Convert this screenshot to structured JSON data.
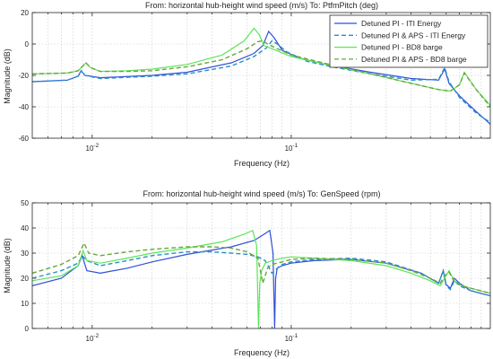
{
  "chart_data": [
    {
      "type": "line",
      "title": "From: horizontal hub-height wind speed (m/s)  To: PtfmPitch (deg)",
      "xlabel": "Frequency  (Hz)",
      "ylabel": "Magnitude (dB)",
      "xscale": "log",
      "xlim": [
        0.005,
        1.0
      ],
      "ylim": [
        -60,
        20
      ],
      "yticks": [
        -60,
        -40,
        -20,
        0,
        20
      ],
      "xtick_labels": [
        {
          "value": 0.01,
          "base": "10",
          "exp": "-2"
        },
        {
          "value": 0.1,
          "base": "10",
          "exp": "-1"
        }
      ],
      "grid": true,
      "legend": "top-right",
      "series": [
        {
          "name": "Detuned PI - ITI Energy",
          "color": "#2f4fd8",
          "dash": "solid",
          "x": [
            0.005,
            0.0075,
            0.0085,
            0.0088,
            0.0092,
            0.011,
            0.02,
            0.03,
            0.05,
            0.065,
            0.072,
            0.077,
            0.082,
            0.09,
            0.11,
            0.15,
            0.25,
            0.4,
            0.55,
            0.59,
            0.62,
            0.7,
            0.85,
            1.0
          ],
          "y": [
            -24,
            -23,
            -20.5,
            -17,
            -20,
            -21.5,
            -20,
            -18,
            -12,
            -6,
            -1,
            8,
            4,
            -4,
            -9,
            -13,
            -18,
            -22,
            -23,
            -16,
            -25,
            -33,
            -43,
            -51
          ]
        },
        {
          "name": "Detuned PI & APS - ITI Energy",
          "color": "#2a8fc8",
          "dash": "dashed",
          "x": [
            0.005,
            0.0075,
            0.0085,
            0.0088,
            0.0092,
            0.011,
            0.02,
            0.03,
            0.05,
            0.065,
            0.075,
            0.08,
            0.085,
            0.095,
            0.12,
            0.16,
            0.25,
            0.4,
            0.55,
            0.59,
            0.62,
            0.7,
            0.85,
            1.0
          ],
          "y": [
            -24,
            -23,
            -20.5,
            -17,
            -20,
            -22,
            -20.5,
            -19,
            -14,
            -8,
            -2.5,
            2,
            0,
            -5,
            -11,
            -14.5,
            -19,
            -23,
            -22.5,
            -15,
            -24,
            -34,
            -44,
            -50
          ]
        },
        {
          "name": "Detuned PI - BD8 barge",
          "color": "#5ae65a",
          "dash": "solid",
          "x": [
            0.005,
            0.0075,
            0.0085,
            0.0093,
            0.0098,
            0.011,
            0.015,
            0.02,
            0.03,
            0.045,
            0.058,
            0.065,
            0.069,
            0.073,
            0.08,
            0.1,
            0.15,
            0.25,
            0.4,
            0.55,
            0.63,
            0.7,
            0.74,
            0.85,
            1.0
          ],
          "y": [
            -19,
            -18.5,
            -17,
            -12,
            -15,
            -17.5,
            -17,
            -16,
            -13,
            -7,
            2,
            10,
            6,
            -1,
            -3,
            -8,
            -13,
            -19,
            -25,
            -29,
            -30,
            -26,
            -18,
            -29,
            -39
          ]
        },
        {
          "name": "Detuned PI & APS - BD8 barge",
          "color": "#6aa63a",
          "dash": "dashed",
          "x": [
            0.005,
            0.0075,
            0.0085,
            0.0093,
            0.0098,
            0.011,
            0.015,
            0.02,
            0.03,
            0.045,
            0.06,
            0.068,
            0.072,
            0.076,
            0.085,
            0.1,
            0.15,
            0.25,
            0.4,
            0.55,
            0.63,
            0.7,
            0.74,
            0.85,
            1.0
          ],
          "y": [
            -19,
            -18.5,
            -17,
            -12,
            -15,
            -17.5,
            -17.5,
            -17,
            -14.5,
            -10,
            -3,
            1.5,
            2,
            0,
            -3,
            -7,
            -12.5,
            -19,
            -25,
            -29,
            -30,
            -26,
            -18.5,
            -29,
            -40
          ]
        }
      ]
    },
    {
      "type": "line",
      "title": "From: horizontal hub-height wind speed (m/s)  To: GenSpeed (rpm)",
      "xlabel": "Frequency  (Hz)",
      "ylabel": "Magnitude (dB)",
      "xscale": "log",
      "xlim": [
        0.005,
        1.0
      ],
      "ylim": [
        0,
        50
      ],
      "yticks": [
        0,
        10,
        20,
        30,
        40,
        50
      ],
      "xtick_labels": [
        {
          "value": 0.01,
          "base": "10",
          "exp": "-2"
        },
        {
          "value": 0.1,
          "base": "10",
          "exp": "-1"
        }
      ],
      "grid": true,
      "series": [
        {
          "name": "Detuned PI - ITI Energy",
          "color": "#2f4fd8",
          "dash": "solid",
          "x": [
            0.005,
            0.007,
            0.0085,
            0.0089,
            0.0094,
            0.011,
            0.015,
            0.02,
            0.03,
            0.05,
            0.065,
            0.073,
            0.078,
            0.081,
            0.0825,
            0.0835,
            0.085,
            0.09,
            0.1,
            0.13,
            0.2,
            0.3,
            0.45,
            0.55,
            0.58,
            0.6,
            0.63,
            0.66,
            0.7,
            0.8,
            1.0
          ],
          "y": [
            17,
            20,
            25,
            29,
            23,
            22,
            24,
            26.5,
            29.5,
            32.5,
            35,
            37.5,
            39,
            30,
            0,
            20,
            24,
            25,
            26,
            27,
            27.5,
            26,
            22,
            18,
            23,
            17.5,
            16,
            20,
            18,
            15,
            13
          ]
        },
        {
          "name": "Detuned PI & APS - ITI Energy",
          "color": "#2a8fc8",
          "dash": "dashed",
          "x": [
            0.005,
            0.007,
            0.0085,
            0.0089,
            0.0094,
            0.011,
            0.015,
            0.02,
            0.03,
            0.04,
            0.05,
            0.06,
            0.068,
            0.074,
            0.08,
            0.085,
            0.09,
            0.1,
            0.13,
            0.2,
            0.3,
            0.45,
            0.55,
            0.58,
            0.6,
            0.63,
            0.66,
            0.7,
            0.8,
            1.0
          ],
          "y": [
            20,
            23,
            26,
            29,
            27,
            25,
            27,
            29,
            30.5,
            30.5,
            30,
            29.5,
            28.5,
            27,
            22,
            24,
            25.5,
            26.5,
            27.5,
            28,
            26.5,
            22,
            18,
            23,
            17,
            15.5,
            19,
            17,
            15,
            13
          ]
        },
        {
          "name": "Detuned PI - BD8 barge",
          "color": "#5ae65a",
          "dash": "solid",
          "x": [
            0.005,
            0.007,
            0.0085,
            0.009,
            0.0094,
            0.011,
            0.015,
            0.02,
            0.03,
            0.045,
            0.058,
            0.064,
            0.067,
            0.0685,
            0.0695,
            0.071,
            0.074,
            0.08,
            0.09,
            0.1,
            0.13,
            0.2,
            0.3,
            0.4,
            0.5,
            0.56,
            0.59,
            0.62,
            0.66,
            0.72,
            0.8,
            1.0
          ],
          "y": [
            19,
            21,
            25,
            31,
            27,
            26,
            28,
            30,
            32,
            34.5,
            37.5,
            39,
            33,
            0,
            18,
            23,
            26,
            27,
            28,
            28.5,
            28,
            27,
            25,
            22,
            19,
            17,
            20,
            23,
            19,
            17,
            16,
            14
          ]
        },
        {
          "name": "Detuned PI & APS - BD8 barge",
          "color": "#6aa63a",
          "dash": "dashed",
          "x": [
            0.005,
            0.007,
            0.0085,
            0.0091,
            0.0096,
            0.011,
            0.015,
            0.02,
            0.03,
            0.04,
            0.05,
            0.06,
            0.068,
            0.072,
            0.076,
            0.08,
            0.09,
            0.1,
            0.13,
            0.2,
            0.3,
            0.4,
            0.5,
            0.56,
            0.59,
            0.62,
            0.66,
            0.72,
            0.8,
            1.0
          ],
          "y": [
            22,
            25.5,
            29,
            34,
            30,
            29,
            30.5,
            31.5,
            32.5,
            32.5,
            32,
            30.5,
            28,
            18,
            24,
            25.5,
            26.5,
            27.5,
            28,
            27.5,
            26,
            23,
            20,
            18,
            21,
            22.5,
            18.5,
            17,
            16,
            14
          ]
        }
      ]
    }
  ]
}
